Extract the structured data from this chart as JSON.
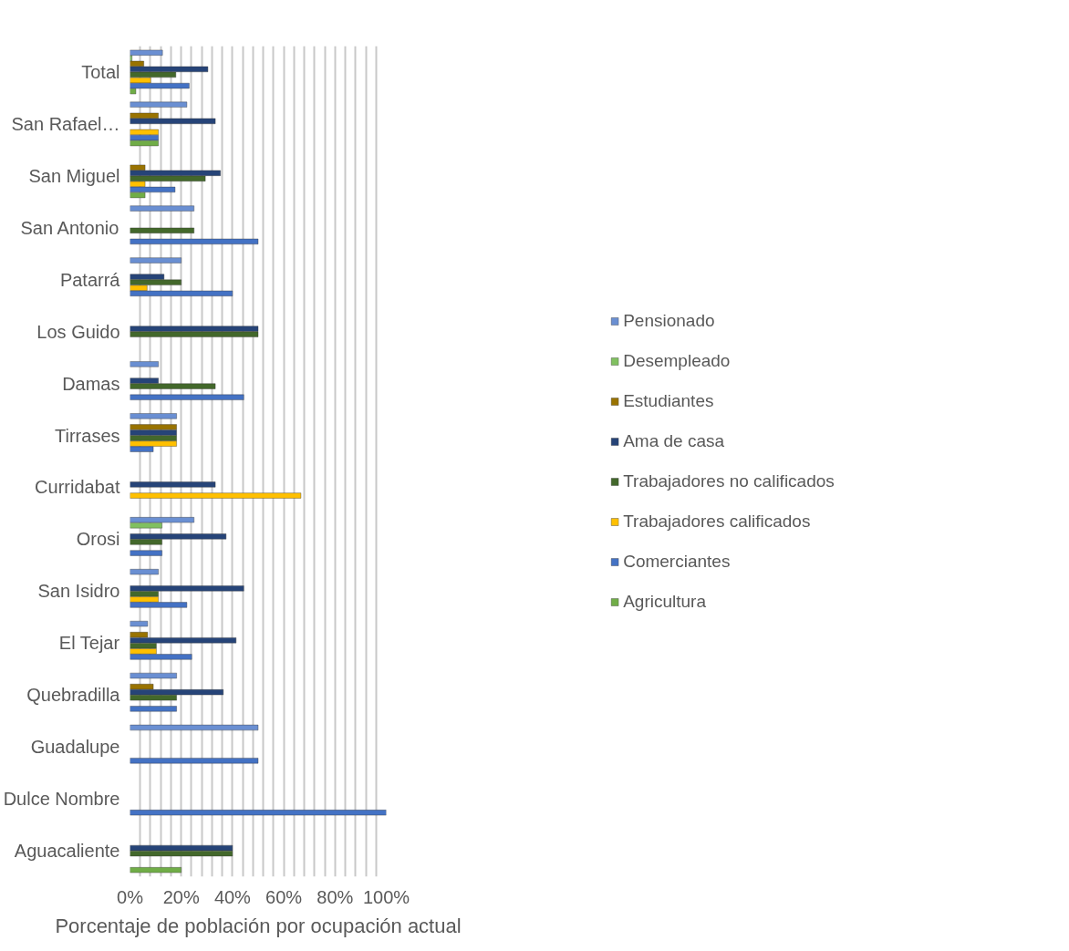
{
  "chart_data": {
    "type": "bar",
    "orientation": "horizontal",
    "xlabel": "Porcentaje de población por ocupación actual",
    "categories": [
      "Total",
      "San Rafael…",
      "San Miguel",
      "San Antonio",
      "Patarrá",
      "Los Guido",
      "Damas",
      "Tirrases",
      "Curridabat",
      "Orosi",
      "San Isidro",
      "El Tejar",
      "Quebradilla",
      "Guadalupe",
      "Dulce Nombre",
      "Aguacaliente"
    ],
    "series": [
      {
        "name": "Pensionado",
        "color": "#6a8fd2",
        "values": [
          12.7,
          22.2,
          null,
          25,
          20,
          null,
          11.1,
          18.2,
          null,
          25,
          11.1,
          6.9,
          18.2,
          50,
          null,
          null
        ]
      },
      {
        "name": "Desempleado",
        "color": "#80c060",
        "values": [
          0.8,
          null,
          null,
          null,
          null,
          null,
          null,
          null,
          null,
          12.5,
          null,
          null,
          null,
          null,
          null,
          null
        ]
      },
      {
        "name": "Estudiantes",
        "color": "#997300",
        "values": [
          5.4,
          11.1,
          5.9,
          null,
          null,
          null,
          null,
          18.2,
          null,
          null,
          null,
          6.9,
          9.1,
          null,
          null,
          null
        ]
      },
      {
        "name": "Ama de casa",
        "color": "#264478",
        "values": [
          30.4,
          33.3,
          35.3,
          null,
          13.3,
          50,
          11.1,
          18.2,
          33.3,
          37.5,
          44.4,
          41.4,
          36.4,
          null,
          null,
          40
        ]
      },
      {
        "name": "Trabajadores no calificados",
        "color": "#43682b",
        "values": [
          17.9,
          null,
          29.4,
          25,
          20,
          50,
          33.3,
          18.2,
          null,
          12.5,
          11.1,
          10.3,
          18.2,
          null,
          null,
          40
        ]
      },
      {
        "name": "Trabajadores calificados",
        "color": "#ffc000",
        "values": [
          8.1,
          11.1,
          5.9,
          null,
          6.7,
          null,
          null,
          18.2,
          66.7,
          null,
          11.1,
          10.3,
          null,
          null,
          null,
          null
        ]
      },
      {
        "name": "Comerciantes",
        "color": "#4472c4",
        "values": [
          23.1,
          11.1,
          17.6,
          50,
          40,
          null,
          44.4,
          9.1,
          null,
          12.5,
          22.2,
          24.1,
          18.2,
          50,
          100,
          null
        ]
      },
      {
        "name": "Agricultura",
        "color": "#70ad47",
        "values": [
          2.3,
          11.1,
          5.9,
          null,
          null,
          null,
          null,
          null,
          null,
          null,
          null,
          null,
          null,
          null,
          null,
          20
        ]
      }
    ],
    "xlim": [
      0,
      100
    ],
    "xticks": [
      {
        "value": 0,
        "label": "0%"
      },
      {
        "value": 4,
        "label": null
      },
      {
        "value": 8,
        "label": null
      },
      {
        "value": 12,
        "label": null
      },
      {
        "value": 16,
        "label": null
      },
      {
        "value": 20,
        "label": "20%"
      },
      {
        "value": 24,
        "label": null
      },
      {
        "value": 28,
        "label": null
      },
      {
        "value": 32,
        "label": null
      },
      {
        "value": 36,
        "label": null
      },
      {
        "value": 40,
        "label": "40%"
      },
      {
        "value": 44,
        "label": null
      },
      {
        "value": 48,
        "label": null
      },
      {
        "value": 52,
        "label": null
      },
      {
        "value": 56,
        "label": null
      },
      {
        "value": 60,
        "label": "60%"
      },
      {
        "value": 64,
        "label": null
      },
      {
        "value": 68,
        "label": null
      },
      {
        "value": 72,
        "label": null
      },
      {
        "value": 76,
        "label": null
      },
      {
        "value": 80,
        "label": "80%"
      },
      {
        "value": 84,
        "label": null
      },
      {
        "value": 88,
        "label": null
      },
      {
        "value": 92,
        "label": null
      },
      {
        "value": 96,
        "label": null
      },
      {
        "value": 100,
        "label": "100%"
      }
    ],
    "grid": "x",
    "legend": "right"
  }
}
